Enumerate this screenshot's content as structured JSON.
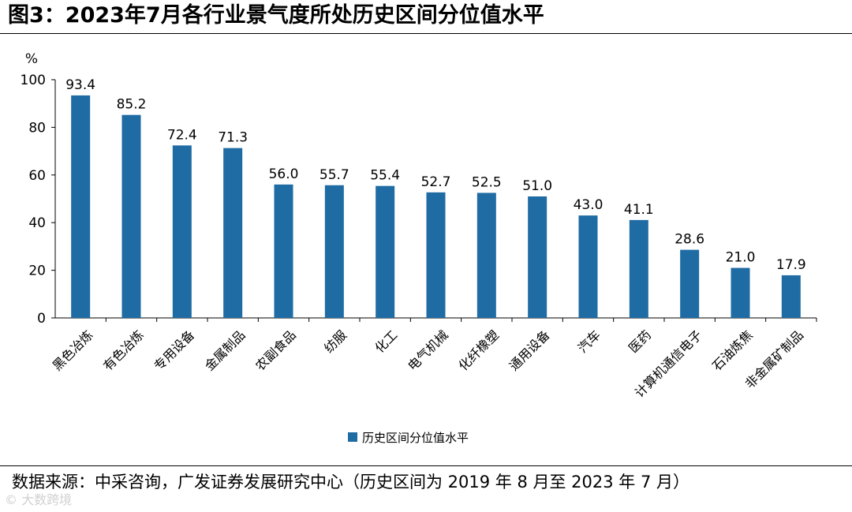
{
  "figure": {
    "title": "图3：2023年7月各行业景气度所处历史区间分位值水平"
  },
  "source": {
    "text": "数据来源：中采咨询，广发证券发展研究中心（历史区间为 2019 年 8 月至 2023 年 7 月）"
  },
  "watermark": {
    "text": "© 大数跨境"
  },
  "chart_data": {
    "type": "bar",
    "title": "",
    "ylabel": "%",
    "ylim": [
      0,
      100
    ],
    "yticks": [
      0,
      20,
      40,
      60,
      80,
      100
    ],
    "grid": false,
    "legend_position": "bottom-center",
    "categories": [
      "黑色冶炼",
      "有色冶炼",
      "专用设备",
      "金属制品",
      "农副食品",
      "纺服",
      "化工",
      "电气机械",
      "化纤橡塑",
      "通用设备",
      "汽车",
      "医药",
      "计算机通信电子",
      "石油炼焦",
      "非金属矿制品"
    ],
    "series": [
      {
        "name": "历史区间分位值水平",
        "color": "#1f6ba3",
        "values": [
          93.4,
          85.2,
          72.4,
          71.3,
          56.0,
          55.7,
          55.4,
          52.7,
          52.5,
          51.0,
          43.0,
          41.1,
          28.6,
          21.0,
          17.9
        ],
        "labels": [
          "93.4",
          "85.2",
          "72.4",
          "71.3",
          "56.0",
          "55.7",
          "55.4",
          "52.7",
          "52.5",
          "51.0",
          "43.0",
          "41.1",
          "28.6",
          "21.0",
          "17.9"
        ]
      }
    ]
  }
}
